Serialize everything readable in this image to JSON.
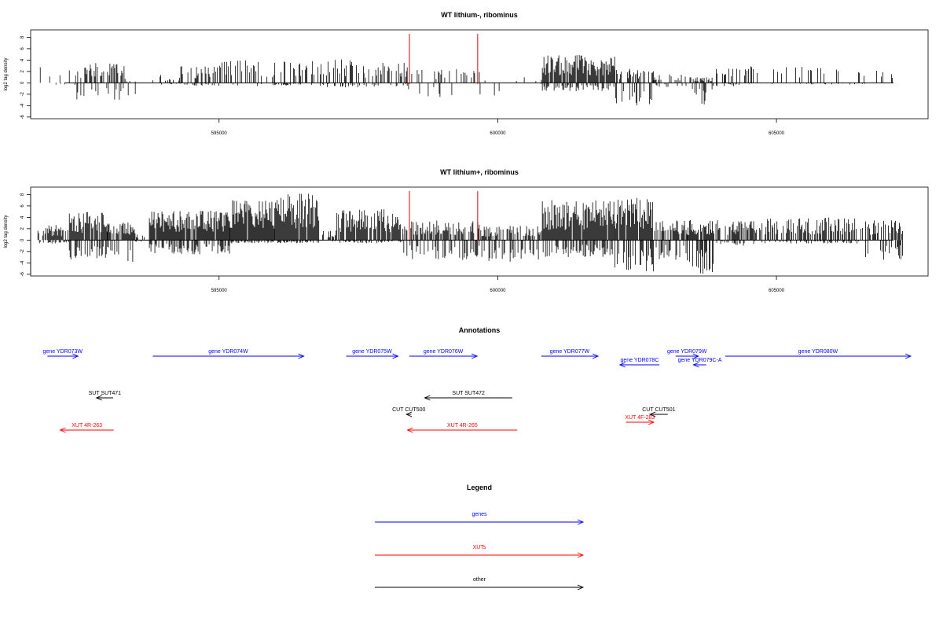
{
  "chart_data": [
    {
      "type": "bar",
      "title": "WT lithium-, ribominus",
      "ylabel": "log2 tag density",
      "xlabel": "",
      "xlim": [
        591620,
        607720
      ],
      "ylim": [
        -6.3,
        9.3
      ],
      "yticks": [
        -6,
        -4,
        -2,
        0,
        2,
        4,
        6,
        8
      ],
      "xticks": [
        595000,
        600000,
        605000
      ],
      "xtick_labels": [
        "595000",
        "600000",
        "605000"
      ],
      "grid": false,
      "markers": {
        "color": "#e00000",
        "x": [
          598415,
          599640
        ],
        "y": [
          -0.2,
          8.6
        ]
      },
      "bins": [
        [
          591750,
          592450,
          3.0,
          -0.4,
          0.18
        ],
        [
          592450,
          593300,
          3.5,
          -3.4,
          0.55
        ],
        [
          593300,
          593500,
          0.8,
          -2.2,
          0.4
        ],
        [
          593800,
          594300,
          1.4,
          -0.3,
          0.2
        ],
        [
          594300,
          594900,
          3.0,
          -0.5,
          0.45
        ],
        [
          594900,
          596900,
          4.0,
          -0.6,
          0.35
        ],
        [
          596900,
          597600,
          4.2,
          -0.8,
          0.45
        ],
        [
          597600,
          598400,
          3.6,
          -0.7,
          0.3
        ],
        [
          598400,
          599700,
          2.4,
          -2.6,
          0.12
        ],
        [
          599700,
          600500,
          1.2,
          -3.0,
          0.08
        ],
        [
          600500,
          600800,
          1.2,
          -0.6,
          0.12
        ],
        [
          600800,
          602100,
          5.0,
          -1.5,
          0.9
        ],
        [
          602100,
          602800,
          2.5,
          -4.3,
          0.45
        ],
        [
          602800,
          603450,
          1.5,
          -0.8,
          0.3
        ],
        [
          603450,
          603850,
          1.0,
          -4.2,
          0.7
        ],
        [
          603850,
          604500,
          2.5,
          -0.6,
          0.35
        ],
        [
          604500,
          606500,
          3.0,
          -0.3,
          0.22
        ],
        [
          606500,
          607300,
          2.6,
          -0.2,
          0.15
        ]
      ]
    },
    {
      "type": "bar",
      "title": "WT lithium+, ribominus",
      "ylabel": "log2 tag density",
      "xlabel": "",
      "xlim": [
        591620,
        607720
      ],
      "ylim": [
        -6.3,
        9.3
      ],
      "yticks": [
        -6,
        -4,
        -2,
        0,
        2,
        4,
        6,
        8
      ],
      "xticks": [
        595000,
        600000,
        605000
      ],
      "xtick_labels": [
        "595000",
        "600000",
        "605000"
      ],
      "grid": false,
      "markers": {
        "color": "#e00000",
        "x": [
          598415,
          599640
        ],
        "y": [
          -0.2,
          8.6
        ]
      },
      "bins": [
        [
          591750,
          592300,
          2.8,
          -0.6,
          0.8
        ],
        [
          592300,
          593000,
          5.0,
          -3.4,
          0.9
        ],
        [
          593000,
          593500,
          3.2,
          -4.0,
          0.8
        ],
        [
          593500,
          593750,
          1.0,
          -0.5,
          0.3
        ],
        [
          593750,
          595200,
          5.2,
          -2.5,
          0.95
        ],
        [
          595200,
          596000,
          7.0,
          -0.6,
          0.95
        ],
        [
          596000,
          596800,
          8.2,
          -0.6,
          0.95
        ],
        [
          596800,
          597100,
          2.0,
          -0.3,
          0.4
        ],
        [
          597100,
          598300,
          5.5,
          -0.6,
          0.8
        ],
        [
          598300,
          599700,
          3.5,
          -3.5,
          0.7
        ],
        [
          599700,
          600800,
          2.5,
          -3.8,
          0.55
        ],
        [
          600800,
          602100,
          7.0,
          -3.0,
          0.98
        ],
        [
          602100,
          602800,
          7.5,
          -5.5,
          0.9
        ],
        [
          602800,
          603400,
          3.5,
          -3.5,
          0.7
        ],
        [
          603400,
          603900,
          3.5,
          -6.0,
          0.95
        ],
        [
          603900,
          604600,
          3.5,
          -1.0,
          0.6
        ],
        [
          604600,
          606500,
          4.0,
          -0.6,
          0.65
        ],
        [
          606500,
          607300,
          3.5,
          -3.5,
          0.5
        ]
      ]
    }
  ],
  "annotations": {
    "title": "Annotations",
    "features": [
      {
        "label": "gene YDR073W",
        "color": "#0000ff",
        "dir": 1,
        "start": 591920,
        "end": 592470,
        "row": 0
      },
      {
        "label": "gene YDR074W",
        "color": "#0000ff",
        "dir": 1,
        "start": 593810,
        "end": 596520,
        "row": 0
      },
      {
        "label": "gene YDR075W",
        "color": "#0000ff",
        "dir": 1,
        "start": 597280,
        "end": 598210,
        "row": 0
      },
      {
        "label": "gene YDR076W",
        "color": "#0000ff",
        "dir": 1,
        "start": 598415,
        "end": 599630,
        "row": 0
      },
      {
        "label": "gene YDR077W",
        "color": "#0000ff",
        "dir": 1,
        "start": 600780,
        "end": 601800,
        "row": 0
      },
      {
        "label": "gene YDR079W",
        "color": "#0000ff",
        "dir": 1,
        "start": 603190,
        "end": 603600,
        "row": 0
      },
      {
        "label": "gene YDR080W",
        "color": "#0000ff",
        "dir": 1,
        "start": 604080,
        "end": 607410,
        "row": 0
      },
      {
        "label": "gene YDR078C",
        "color": "#0000ff",
        "dir": -1,
        "start": 602190,
        "end": 602900,
        "row": 1
      },
      {
        "label": "gene YDR079C-A",
        "color": "#0000ff",
        "dir": -1,
        "start": 603510,
        "end": 603740,
        "row": 1
      },
      {
        "label": "SUT SUT471",
        "color": "#000000",
        "dir": -1,
        "start": 592800,
        "end": 593100,
        "row": 2
      },
      {
        "label": "SUT SUT472",
        "color": "#000000",
        "dir": -1,
        "start": 598690,
        "end": 600260,
        "row": 2
      },
      {
        "label": "CUT CUT500",
        "color": "#000000",
        "dir": -1,
        "start": 598360,
        "end": 598450,
        "row": 3
      },
      {
        "label": "CUT CUT501",
        "color": "#000000",
        "dir": -1,
        "start": 602730,
        "end": 603050,
        "row": 3
      },
      {
        "label": "XUT 4F-283",
        "color": "#ff0000",
        "dir": 1,
        "start": 602300,
        "end": 602800,
        "row": 4
      },
      {
        "label": "XUT 4R-263",
        "color": "#ff0000",
        "dir": -1,
        "start": 592150,
        "end": 593110,
        "row": 5
      },
      {
        "label": "XUT 4R-265",
        "color": "#ff0000",
        "dir": -1,
        "start": 598380,
        "end": 600350,
        "row": 5
      }
    ]
  },
  "legend": {
    "title": "Legend",
    "items": [
      {
        "label": "genes",
        "color": "#0000ff"
      },
      {
        "label": "XUTs",
        "color": "#ff0000"
      },
      {
        "label": "other",
        "color": "#000000"
      }
    ]
  }
}
